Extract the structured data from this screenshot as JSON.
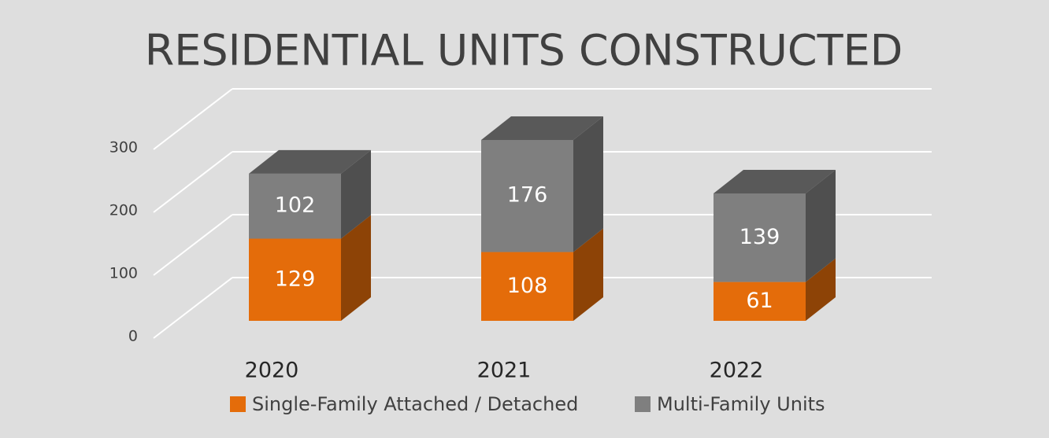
{
  "chart_data": {
    "type": "bar3d_stacked",
    "title": "RESIDENTIAL UNITS CONSTRUCTED",
    "categories": [
      "2020",
      "2021",
      "2022"
    ],
    "series": [
      {
        "name": "Single-Family Attached / Detached",
        "color": "#e46c0a",
        "values": [
          129,
          108,
          61
        ]
      },
      {
        "name": "Multi-Family Units",
        "color": "#7f7f7f",
        "values": [
          102,
          176,
          139
        ]
      }
    ],
    "ylim": [
      0,
      300
    ],
    "yticks": [
      0,
      100,
      200,
      300
    ],
    "grid": true,
    "legend": "bottom"
  }
}
